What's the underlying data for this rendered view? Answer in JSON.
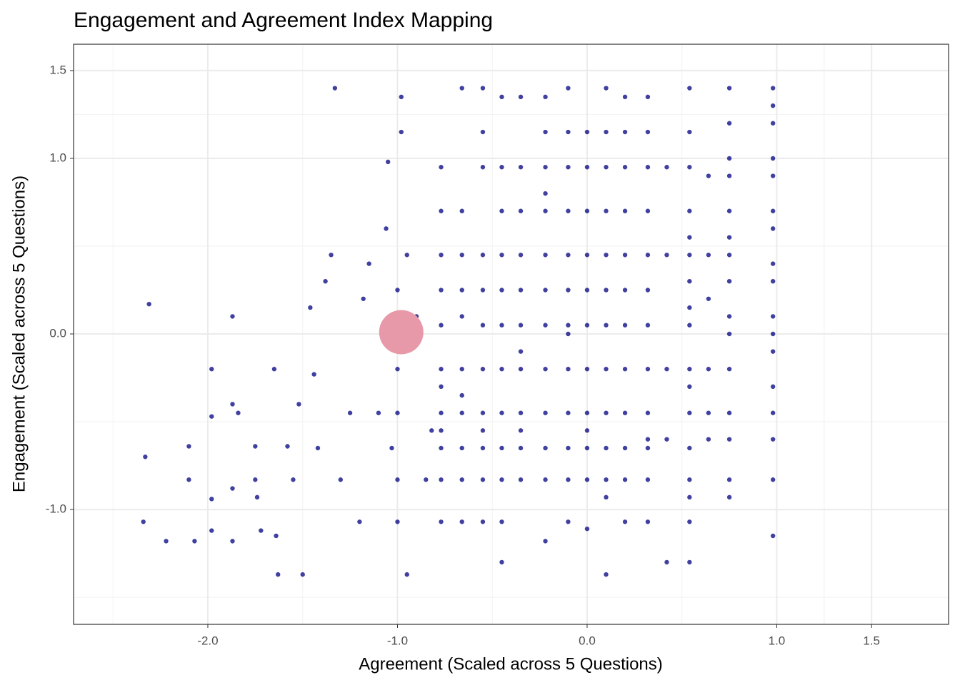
{
  "chart_data": {
    "type": "scatter",
    "title": "Engagement and Agreement Index Mapping",
    "x_label": "Agreement (Scaled across 5 Questions)",
    "y_label": "Engagement (Scaled across 5 Questions)",
    "xlim": [
      -2.708,
      1.906
    ],
    "ylim": [
      -1.654,
      1.65
    ],
    "xticks": [
      {
        "value": -2,
        "label": "-2.0"
      },
      {
        "value": -1,
        "label": "-1.0"
      },
      {
        "value": 0,
        "label": "0.0"
      },
      {
        "value": 1,
        "label": "1.0"
      },
      1.5
    ],
    "yticks": [
      {
        "value": -1,
        "label": "-1.0"
      },
      {
        "value": 0,
        "label": "0.0"
      },
      {
        "value": 1,
        "label": "1.0"
      },
      1.5
    ],
    "x_minor_ticks": [
      -2.5,
      -1.5,
      -0.5,
      0.5,
      1.25
    ],
    "y_minor_ticks": [
      -1.5,
      -0.5,
      0.5,
      1.25
    ],
    "grid": true,
    "series": [
      {
        "color": "#000080",
        "opacity": 0.75,
        "size": 3.2,
        "x": [
          -2.31,
          -2.33,
          -2.34,
          -2.22,
          -2.1,
          -2.1,
          -2.07,
          -1.98,
          -1.98,
          -1.98,
          -1.98,
          -1.87,
          -1.87,
          -1.87,
          -1.87,
          -1.84,
          -1.75,
          -1.75,
          -1.74,
          -1.72,
          -1.65,
          -1.64,
          -1.63,
          -1.58,
          -1.55,
          -1.52,
          -1.5,
          -1.46,
          -1.44,
          -1.42,
          -1.38,
          -1.35,
          -1.33,
          -1.3,
          -1.25,
          -1.2,
          -1.18,
          -1.15,
          -1.1,
          -1.06,
          -1.05,
          -1.03,
          -1.0,
          -1.0,
          -1.0,
          -1.0,
          -1.0,
          -0.98,
          -0.98,
          -0.95,
          -0.95,
          -0.9,
          -0.85,
          -0.82,
          -0.77,
          -0.77,
          -0.77,
          -0.77,
          -0.77,
          -0.77,
          -0.77,
          -0.77,
          -0.77,
          -0.77,
          -0.77,
          -0.77,
          -0.66,
          -0.66,
          -0.66,
          -0.66,
          -0.66,
          -0.66,
          -0.66,
          -0.66,
          -0.66,
          -0.66,
          -0.66,
          -0.55,
          -0.55,
          -0.55,
          -0.55,
          -0.55,
          -0.55,
          -0.55,
          -0.55,
          -0.55,
          -0.55,
          -0.55,
          -0.55,
          -0.45,
          -0.45,
          -0.45,
          -0.45,
          -0.45,
          -0.45,
          -0.45,
          -0.45,
          -0.45,
          -0.45,
          -0.45,
          -0.45,
          -0.35,
          -0.35,
          -0.35,
          -0.35,
          -0.35,
          -0.35,
          -0.35,
          -0.35,
          -0.35,
          -0.35,
          -0.35,
          -0.35,
          -0.22,
          -0.22,
          -0.22,
          -0.22,
          -0.22,
          -0.22,
          -0.22,
          -0.22,
          -0.22,
          -0.22,
          -0.22,
          -0.22,
          -0.22,
          -0.1,
          -0.1,
          -0.1,
          -0.1,
          -0.1,
          -0.1,
          -0.1,
          -0.1,
          -0.1,
          -0.1,
          -0.1,
          -0.1,
          -0.1,
          0.0,
          0.0,
          0.0,
          0.0,
          0.0,
          0.0,
          0.0,
          0.0,
          0.0,
          0.0,
          0.0,
          0.0,
          0.1,
          0.1,
          0.1,
          0.1,
          0.1,
          0.1,
          0.1,
          0.1,
          0.1,
          0.1,
          0.1,
          0.1,
          0.1,
          0.2,
          0.2,
          0.2,
          0.2,
          0.2,
          0.2,
          0.2,
          0.2,
          0.2,
          0.2,
          0.2,
          0.2,
          0.32,
          0.32,
          0.32,
          0.32,
          0.32,
          0.32,
          0.32,
          0.32,
          0.32,
          0.32,
          0.32,
          0.32,
          0.32,
          0.42,
          0.42,
          0.42,
          0.42,
          0.42,
          0.54,
          0.54,
          0.54,
          0.54,
          0.54,
          0.54,
          0.54,
          0.54,
          0.54,
          0.54,
          0.54,
          0.54,
          0.54,
          0.54,
          0.54,
          0.54,
          0.54,
          0.64,
          0.64,
          0.64,
          0.64,
          0.64,
          0.64,
          0.75,
          0.75,
          0.75,
          0.75,
          0.75,
          0.75,
          0.75,
          0.75,
          0.75,
          0.75,
          0.75,
          0.75,
          0.75,
          0.75,
          0.75,
          0.98,
          0.98,
          0.98,
          0.98,
          0.98,
          0.98,
          0.98,
          0.98,
          0.98,
          0.98,
          0.98,
          0.98,
          0.98,
          0.98,
          0.98,
          0.98,
          0.98
        ],
        "values": [
          0.17,
          -0.7,
          -1.07,
          -1.18,
          -0.64,
          -0.83,
          -1.18,
          -0.2,
          -0.47,
          -0.94,
          -1.12,
          0.1,
          -0.4,
          -0.88,
          -1.18,
          -0.45,
          -0.83,
          -0.64,
          -0.93,
          -1.12,
          -0.2,
          -1.15,
          -1.37,
          -0.64,
          -0.83,
          -0.4,
          -1.37,
          0.15,
          -0.23,
          -0.65,
          0.3,
          0.45,
          1.4,
          -0.83,
          -0.45,
          -1.07,
          0.2,
          0.4,
          -0.45,
          0.6,
          0.98,
          -0.65,
          0.25,
          -0.2,
          -0.45,
          -0.83,
          -1.07,
          1.35,
          1.15,
          0.45,
          -1.37,
          0.1,
          -0.83,
          -0.55,
          0.95,
          0.7,
          0.45,
          0.25,
          0.05,
          -0.2,
          -0.45,
          -0.65,
          -0.83,
          -1.07,
          -0.3,
          -0.55,
          1.4,
          0.7,
          0.45,
          0.25,
          -0.2,
          -0.45,
          -0.65,
          -0.83,
          -1.07,
          0.1,
          -0.35,
          1.4,
          1.15,
          0.95,
          0.45,
          0.25,
          0.05,
          -0.2,
          -0.45,
          -0.65,
          -0.83,
          -1.07,
          -0.55,
          1.35,
          0.95,
          0.7,
          0.45,
          0.25,
          0.05,
          -0.2,
          -0.45,
          -0.65,
          -0.83,
          -1.07,
          -1.3,
          1.35,
          0.95,
          0.7,
          0.45,
          0.25,
          0.05,
          -0.2,
          -0.45,
          -0.65,
          -0.83,
          -0.55,
          -0.1,
          1.35,
          1.15,
          0.95,
          0.8,
          0.7,
          0.45,
          0.25,
          0.05,
          -0.2,
          -0.45,
          -0.65,
          -0.83,
          -1.18,
          1.4,
          1.15,
          0.95,
          0.7,
          0.45,
          0.25,
          0.05,
          0.0,
          -0.2,
          -0.45,
          -0.65,
          -0.83,
          -1.07,
          1.15,
          0.95,
          0.7,
          0.45,
          0.25,
          0.05,
          -0.2,
          -0.45,
          -0.65,
          -0.83,
          -1.11,
          -0.55,
          1.4,
          1.15,
          0.95,
          0.7,
          0.45,
          0.25,
          0.05,
          -0.2,
          -0.45,
          -0.65,
          -0.83,
          -0.93,
          -1.37,
          1.35,
          1.15,
          0.95,
          0.7,
          0.45,
          0.25,
          0.05,
          -0.2,
          -0.45,
          -0.65,
          -0.83,
          -1.07,
          1.35,
          1.15,
          0.95,
          0.7,
          0.45,
          0.25,
          0.05,
          -0.2,
          -0.45,
          -0.65,
          -0.83,
          -1.07,
          -0.6,
          0.95,
          0.45,
          -0.2,
          -0.6,
          -1.3,
          1.4,
          1.15,
          0.95,
          0.7,
          0.55,
          0.45,
          0.3,
          0.15,
          0.05,
          -0.2,
          -0.3,
          -0.45,
          -0.65,
          -0.83,
          -0.93,
          -1.07,
          -1.3,
          0.9,
          0.45,
          0.2,
          -0.2,
          -0.45,
          -0.6,
          1.4,
          1.2,
          1.0,
          0.9,
          0.7,
          0.55,
          0.45,
          0.3,
          0.1,
          0.0,
          -0.2,
          -0.45,
          -0.6,
          -0.83,
          -0.93,
          1.4,
          1.3,
          1.2,
          1.0,
          0.9,
          0.7,
          0.6,
          0.4,
          0.3,
          0.1,
          0.0,
          -0.1,
          -0.3,
          -0.45,
          -0.6,
          -0.83,
          -1.15
        ]
      },
      {
        "color": "#e899a9",
        "opacity": 1,
        "size": 31,
        "x": [
          -0.98
        ],
        "values": [
          0.01
        ]
      }
    ]
  }
}
